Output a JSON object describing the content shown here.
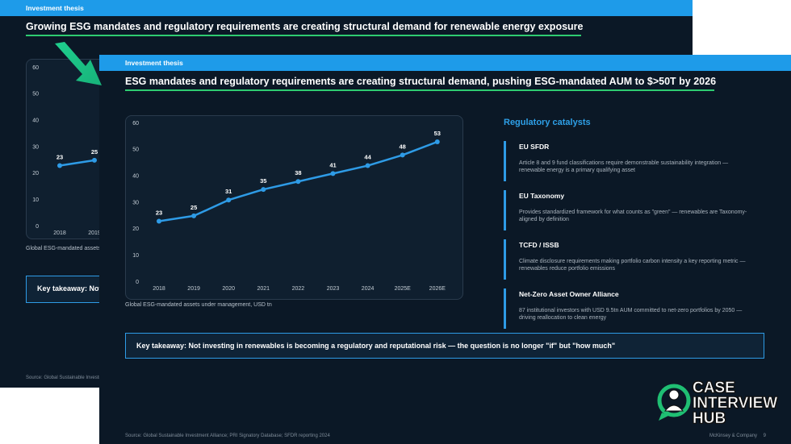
{
  "back_slide": {
    "header": "Investment thesis",
    "title": "Growing ESG mandates and regulatory requirements are creating structural demand for renewable energy exposure",
    "chart": {
      "type": "line",
      "categories": [
        "2018",
        "2019"
      ],
      "values": [
        23,
        25
      ],
      "ylim": [
        0,
        60
      ],
      "yticks": [
        0,
        10,
        20,
        30,
        40,
        50,
        60
      ],
      "color": "#2e9be6",
      "caption": "Global ESG-mandated assets under management, USD tn"
    },
    "takeaway": "Key takeaway: Not",
    "source": "Source: Global Sustainable Investment Alliance; PRI Signatory Database; SFDR reporting 2024"
  },
  "front_slide": {
    "header": "Investment thesis",
    "title": "ESG mandates and regulatory requirements are creating structural demand, pushing ESG-mandated AUM to $>50T by 2026",
    "chart": {
      "type": "line",
      "categories": [
        "2018",
        "2019",
        "2020",
        "2021",
        "2022",
        "2023",
        "2024",
        "2025E",
        "2026E"
      ],
      "values": [
        23,
        25,
        31,
        35,
        38,
        41,
        44,
        48,
        53
      ],
      "ylim": [
        0,
        60
      ],
      "yticks": [
        0,
        10,
        20,
        30,
        40,
        50,
        60
      ],
      "color": "#2e9be6",
      "caption": "Global ESG-mandated assets under management, USD tn"
    },
    "catalysts": {
      "title": "Regulatory catalysts",
      "items": [
        {
          "title": "EU SFDR",
          "description": "Article 8 and 9 fund classifications require demonstrable sustainability integration — renewable energy is a primary qualifying asset"
        },
        {
          "title": "EU Taxonomy",
          "description": "Provides standardized framework for what counts as \"green\" — renewables are Taxonomy-aligned by definition"
        },
        {
          "title": "TCFD / ISSB",
          "description": "Climate disclosure requirements making portfolio carbon intensity a key reporting metric — renewables reduce portfolio emissions"
        },
        {
          "title": "Net-Zero Asset Owner Alliance",
          "description": "87 institutional investors with USD 9.5tn AUM committed to net-zero portfolios by 2050 — driving reallocation to clean energy"
        }
      ]
    },
    "takeaway": "Key takeaway: Not investing in renewables is becoming a regulatory and reputational risk — the question is no longer \"if\" but \"how much\"",
    "source": "Source: Global Sustainable Investment Alliance; PRI Signatory Database; SFDR reporting 2024",
    "footer": "McKinsey & Company",
    "page": 9
  },
  "logo": [
    "CASE",
    "INTERVIEW",
    "HUB"
  ]
}
